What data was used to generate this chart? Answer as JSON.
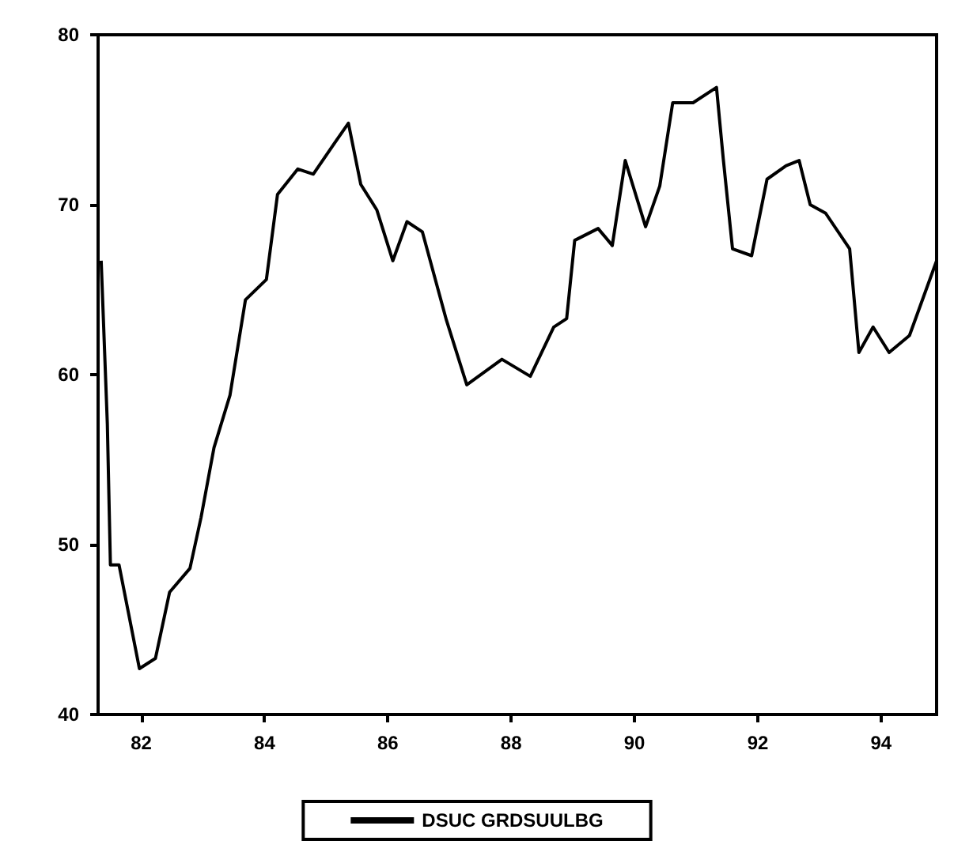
{
  "chart_data": {
    "type": "line",
    "legend": "bottom",
    "grid": false,
    "marker": "none",
    "line_style": "solid",
    "xlim": [
      81.3,
      94.9
    ],
    "xticks": [
      82,
      84,
      86,
      88,
      90,
      92,
      94
    ],
    "ylim": [
      40,
      80
    ],
    "yticks": [
      40,
      50,
      60,
      70,
      80
    ],
    "series": [
      {
        "name": "DSUC GRDSUULBG",
        "color": "#000000",
        "x": [
          81.35,
          81.45,
          81.5,
          81.64,
          81.97,
          82.23,
          82.46,
          82.79,
          82.97,
          83.18,
          83.44,
          83.69,
          84.03,
          84.21,
          84.54,
          84.79,
          85.15,
          85.36,
          85.56,
          85.82,
          86.08,
          86.31,
          86.56,
          86.95,
          87.28,
          87.85,
          88.31,
          88.69,
          88.9,
          89.03,
          89.41,
          89.64,
          89.85,
          90.18,
          90.41,
          90.62,
          90.95,
          91.33,
          91.44,
          91.59,
          91.9,
          92.15,
          92.46,
          92.67,
          92.85,
          93.1,
          93.49,
          93.64,
          93.87,
          94.13,
          94.46,
          94.9
        ],
        "values": [
          66.7,
          57.1,
          48.8,
          48.8,
          42.7,
          43.3,
          47.2,
          48.6,
          51.6,
          55.7,
          58.8,
          64.4,
          65.6,
          70.6,
          72.1,
          71.8,
          73.7,
          74.8,
          71.2,
          69.7,
          66.7,
          69.0,
          68.4,
          63.2,
          59.4,
          60.9,
          59.9,
          62.8,
          63.3,
          67.9,
          68.6,
          67.6,
          72.6,
          68.7,
          71.1,
          76.0,
          76.0,
          76.9,
          72.7,
          67.4,
          67.0,
          71.5,
          72.3,
          72.6,
          70.0,
          69.5,
          67.4,
          61.3,
          62.8,
          61.3,
          62.3,
          66.7
        ]
      }
    ]
  }
}
